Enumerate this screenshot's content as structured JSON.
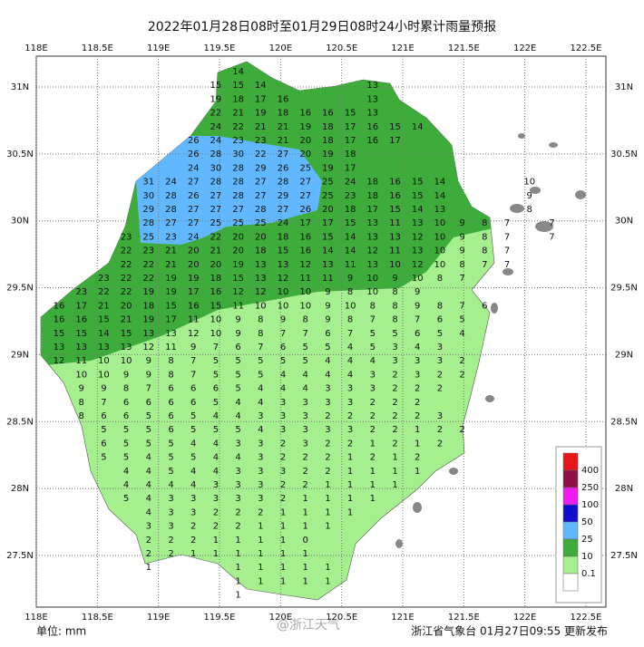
{
  "title": "2022年01月28日08时至01月29日08时24小时累计雨量预报",
  "map": {
    "lon_ticks": [
      {
        "value": 118,
        "label": "118E"
      },
      {
        "value": 118.5,
        "label": "118.5E"
      },
      {
        "value": 119,
        "label": "119E"
      },
      {
        "value": 119.5,
        "label": "119.5E"
      },
      {
        "value": 120,
        "label": "120E"
      },
      {
        "value": 120.5,
        "label": "120.5E"
      },
      {
        "value": 121,
        "label": "121E"
      },
      {
        "value": 121.5,
        "label": "121.5E"
      },
      {
        "value": 122,
        "label": "122E"
      },
      {
        "value": 122.5,
        "label": "122.5E"
      }
    ],
    "lat_ticks": [
      {
        "value": 31,
        "label": "31N"
      },
      {
        "value": 30.5,
        "label": "30.5N"
      },
      {
        "value": 30,
        "label": "30N"
      },
      {
        "value": 29.5,
        "label": "29.5N"
      },
      {
        "value": 29,
        "label": "29N"
      },
      {
        "value": 28.5,
        "label": "28.5N"
      },
      {
        "value": 28,
        "label": "28N"
      },
      {
        "value": 27.5,
        "label": "27.5N"
      }
    ],
    "rows": [
      [
        null,
        null,
        null,
        null,
        null,
        null,
        null,
        null,
        14
      ],
      [
        null,
        null,
        null,
        null,
        null,
        null,
        null,
        15,
        15,
        14,
        null,
        null,
        null,
        null,
        13
      ],
      [
        null,
        null,
        null,
        null,
        null,
        null,
        null,
        19,
        18,
        17,
        16,
        null,
        null,
        null,
        13
      ],
      [
        null,
        null,
        null,
        null,
        null,
        null,
        null,
        22,
        21,
        19,
        18,
        16,
        16,
        15,
        13
      ],
      [
        null,
        null,
        null,
        null,
        null,
        null,
        null,
        24,
        22,
        21,
        21,
        19,
        18,
        17,
        16,
        15,
        14
      ],
      [
        null,
        null,
        null,
        null,
        null,
        null,
        26,
        24,
        23,
        23,
        21,
        20,
        18,
        17,
        16,
        17
      ],
      [
        null,
        null,
        null,
        null,
        null,
        null,
        26,
        28,
        30,
        22,
        27,
        20,
        19,
        18
      ],
      [
        null,
        null,
        null,
        null,
        null,
        null,
        24,
        30,
        28,
        29,
        26,
        25,
        19,
        17
      ],
      [
        null,
        null,
        null,
        null,
        31,
        24,
        27,
        28,
        28,
        27,
        28,
        27,
        25,
        24,
        18,
        16,
        15,
        14,
        null,
        null,
        null,
        10
      ],
      [
        null,
        null,
        null,
        null,
        30,
        28,
        26,
        27,
        28,
        27,
        29,
        27,
        25,
        23,
        18,
        16,
        15,
        14,
        null,
        null,
        null,
        9
      ],
      [
        null,
        null,
        null,
        null,
        29,
        28,
        27,
        27,
        27,
        28,
        27,
        26,
        20,
        18,
        17,
        15,
        14,
        13,
        null,
        null,
        null,
        8
      ],
      [
        null,
        null,
        null,
        null,
        28,
        27,
        27,
        25,
        25,
        25,
        24,
        17,
        17,
        15,
        13,
        11,
        13,
        10,
        9,
        8,
        7,
        null,
        7
      ],
      [
        null,
        null,
        null,
        23,
        25,
        23,
        24,
        22,
        20,
        20,
        18,
        16,
        15,
        14,
        13,
        13,
        12,
        10,
        9,
        8,
        7,
        null,
        7
      ],
      [
        null,
        null,
        null,
        22,
        23,
        21,
        20,
        21,
        20,
        18,
        15,
        16,
        14,
        14,
        12,
        11,
        13,
        10,
        9,
        8,
        7
      ],
      [
        null,
        null,
        null,
        22,
        22,
        21,
        20,
        20,
        19,
        13,
        13,
        12,
        13,
        11,
        13,
        10,
        12,
        10,
        8,
        7,
        7
      ],
      [
        null,
        null,
        23,
        22,
        22,
        19,
        19,
        18,
        15,
        13,
        12,
        11,
        11,
        9,
        10,
        9,
        10,
        8,
        7
      ],
      [
        null,
        23,
        22,
        22,
        19,
        19,
        17,
        16,
        12,
        12,
        10,
        10,
        9,
        8,
        10,
        8,
        9
      ],
      [
        16,
        17,
        21,
        20,
        18,
        15,
        16,
        15,
        11,
        10,
        10,
        10,
        9,
        10,
        8,
        8,
        9,
        8,
        7,
        6
      ],
      [
        16,
        16,
        15,
        21,
        19,
        17,
        11,
        10,
        9,
        8,
        9,
        8,
        9,
        8,
        7,
        8,
        7,
        6,
        5
      ],
      [
        15,
        15,
        14,
        15,
        13,
        13,
        12,
        10,
        9,
        8,
        7,
        7,
        6,
        7,
        5,
        5,
        6,
        5,
        4
      ],
      [
        13,
        13,
        13,
        13,
        12,
        11,
        9,
        7,
        6,
        7,
        6,
        5,
        5,
        4,
        5,
        3,
        4,
        3
      ],
      [
        12,
        11,
        10,
        10,
        9,
        8,
        7,
        5,
        5,
        5,
        5,
        5,
        4,
        4,
        4,
        3,
        3,
        3,
        2
      ],
      [
        null,
        10,
        10,
        9,
        9,
        8,
        7,
        5,
        5,
        5,
        4,
        4,
        4,
        4,
        3,
        2,
        3,
        2,
        2
      ],
      [
        null,
        9,
        9,
        8,
        7,
        6,
        6,
        6,
        5,
        4,
        4,
        4,
        3,
        3,
        3,
        2,
        2,
        2
      ],
      [
        null,
        8,
        7,
        6,
        6,
        6,
        6,
        5,
        4,
        4,
        3,
        3,
        3,
        3,
        2,
        2,
        2
      ],
      [
        null,
        8,
        6,
        6,
        5,
        6,
        5,
        4,
        4,
        3,
        3,
        3,
        2,
        2,
        2,
        2,
        2,
        3
      ],
      [
        null,
        null,
        5,
        5,
        5,
        6,
        5,
        5,
        5,
        4,
        3,
        3,
        3,
        3,
        2,
        2,
        1,
        2,
        2
      ],
      [
        null,
        null,
        6,
        5,
        5,
        5,
        4,
        4,
        3,
        3,
        2,
        3,
        2,
        2,
        1,
        2,
        1,
        2
      ],
      [
        null,
        null,
        5,
        5,
        4,
        5,
        5,
        4,
        4,
        3,
        2,
        2,
        2,
        1,
        2,
        1,
        2
      ],
      [
        null,
        null,
        null,
        4,
        4,
        5,
        4,
        4,
        3,
        3,
        3,
        2,
        2,
        1,
        1,
        1,
        1
      ],
      [
        null,
        null,
        null,
        4,
        4,
        4,
        4,
        3,
        3,
        3,
        2,
        2,
        1,
        1,
        1,
        1
      ],
      [
        null,
        null,
        null,
        5,
        4,
        3,
        3,
        3,
        3,
        3,
        2,
        1,
        1,
        1,
        1
      ],
      [
        null,
        null,
        null,
        null,
        4,
        3,
        3,
        2,
        2,
        2,
        1,
        1,
        1,
        1
      ],
      [
        null,
        null,
        null,
        null,
        3,
        3,
        2,
        2,
        2,
        1,
        1,
        1,
        1
      ],
      [
        null,
        null,
        null,
        null,
        2,
        2,
        2,
        1,
        1,
        1,
        1,
        0
      ],
      [
        null,
        null,
        null,
        null,
        2,
        2,
        1,
        1,
        1,
        1,
        1,
        1
      ],
      [
        null,
        null,
        null,
        null,
        1,
        null,
        null,
        null,
        1,
        1,
        1,
        1,
        1
      ],
      [
        null,
        null,
        null,
        null,
        null,
        null,
        null,
        null,
        1,
        1,
        1,
        1,
        1
      ],
      [
        null,
        null,
        null,
        null,
        null,
        null,
        null,
        null,
        1
      ]
    ]
  },
  "legend": {
    "labels": [
      400,
      250,
      100,
      50,
      25,
      10,
      0.1
    ],
    "colors": [
      "#e8141b",
      "#8c1046",
      "#ee1cf0",
      "#1010cc",
      "#61b8ff",
      "#3dac3a",
      "#a6ef8f",
      "#ffffff"
    ]
  },
  "footer": {
    "unit": "单位: mm",
    "watermark": "@浙江天气",
    "source": "浙江省气象台 01月27日09:55 更新发布"
  }
}
